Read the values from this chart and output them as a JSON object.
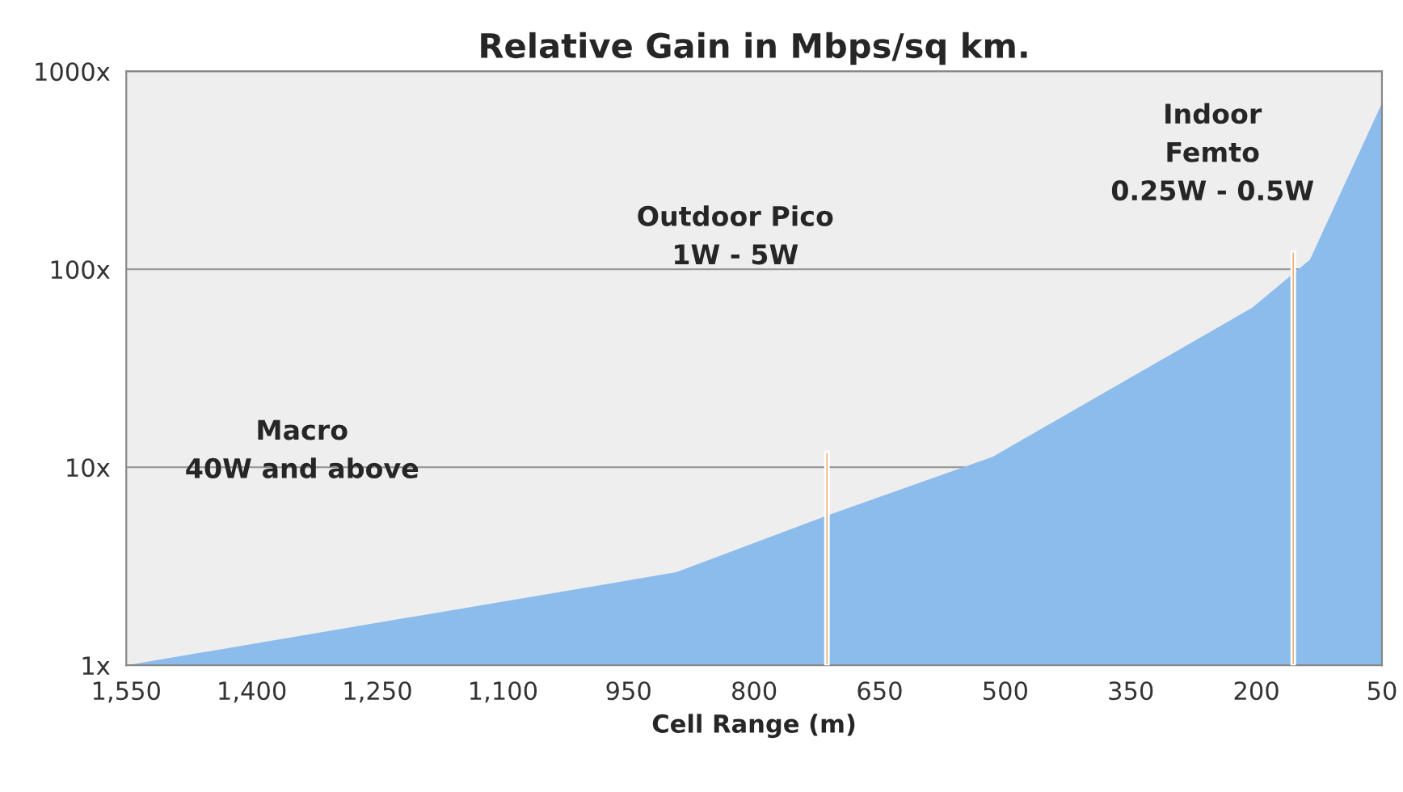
{
  "chart_data": {
    "type": "area",
    "title": "Relative Gain in Mbps/sq km.",
    "xlabel": "Cell Range (m)",
    "x": [
      1550,
      893,
      713,
      515,
      205,
      136,
      50
    ],
    "series": [
      {
        "color": "#8cbcec",
        "values": [
          1.0,
          2.95,
          5.7,
          11.3,
          64,
          112,
          690
        ]
      },
      {
        "type": "bar",
        "color": "#e8a060",
        "x": [
          713,
          156
        ],
        "values": [
          12,
          123
        ]
      }
    ],
    "xlim": [
      1550,
      50
    ],
    "xticks": [
      {
        "value": 1550,
        "label": "1,550"
      },
      {
        "value": 1400,
        "label": "1,400"
      },
      {
        "value": 1250,
        "label": "1,250"
      },
      {
        "value": 1100,
        "label": "1,100"
      },
      950,
      800,
      650,
      500,
      350,
      200,
      50
    ],
    "ylim": [
      1,
      1000
    ],
    "log": true,
    "yticks": [
      {
        "value": 1,
        "label": "1x"
      },
      {
        "value": 10,
        "label": "10x"
      },
      {
        "value": 100,
        "label": "100x"
      },
      {
        "value": 1000,
        "label": "1000x"
      }
    ],
    "grid": "y",
    "annotations": [
      "Macro\n40W and above",
      "Outdoor Pico\n1W - 5W",
      "Indoor\nFemto\n0.25W - 0.5W"
    ]
  }
}
